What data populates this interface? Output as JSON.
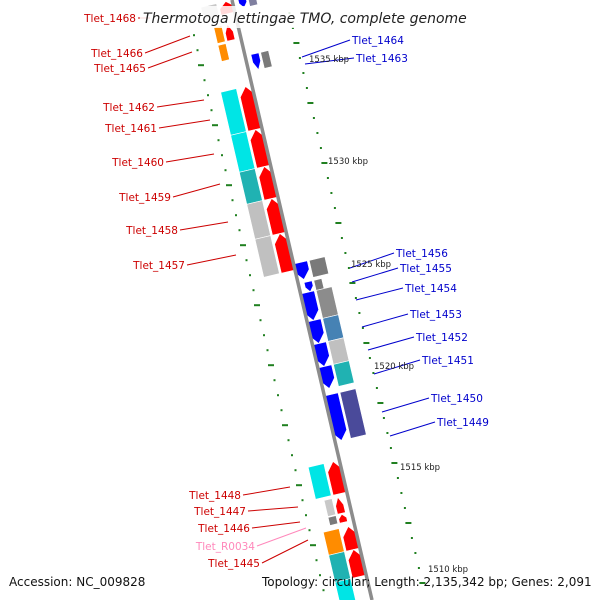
{
  "title": "Thermotoga lettingae TMO, complete genome",
  "accession_line": "Accession: NC_009828",
  "summary_line": "Topology: circular; Length: 2,135,342 bp; Genes: 2,091",
  "colors": {
    "backbone": "#8c8c8c",
    "forward_arrow": "#ff0000",
    "reverse_arrow": "#0000ff",
    "forward_label": "#cc0000",
    "reverse_label": "#0000cc",
    "rna_label": "#ff88bb",
    "tick": "#208020"
  },
  "scale_labels": [
    "1535 kbp",
    "1530 kbp",
    "1525 kbp",
    "1520 kbp",
    "1515 kbp",
    "1510 kbp"
  ],
  "genes_left": [
    {
      "label": "Tlet_1468",
      "strand": "forward"
    },
    {
      "label": "Tlet_1466",
      "strand": "forward"
    },
    {
      "label": "Tlet_1465",
      "strand": "forward"
    },
    {
      "label": "Tlet_1462",
      "strand": "forward"
    },
    {
      "label": "Tlet_1461",
      "strand": "forward"
    },
    {
      "label": "Tlet_1460",
      "strand": "forward"
    },
    {
      "label": "Tlet_1459",
      "strand": "forward"
    },
    {
      "label": "Tlet_1458",
      "strand": "forward"
    },
    {
      "label": "Tlet_1457",
      "strand": "forward"
    },
    {
      "label": "Tlet_1448",
      "strand": "forward"
    },
    {
      "label": "Tlet_1447",
      "strand": "forward"
    },
    {
      "label": "Tlet_1446",
      "strand": "forward"
    },
    {
      "label": "Tlet_R0034",
      "strand": "rna"
    },
    {
      "label": "Tlet_1445",
      "strand": "forward"
    }
  ],
  "genes_right": [
    {
      "label": "Tlet_1464",
      "strand": "reverse"
    },
    {
      "label": "Tlet_1463",
      "strand": "reverse"
    },
    {
      "label": "Tlet_1456",
      "strand": "reverse"
    },
    {
      "label": "Tlet_1455",
      "strand": "reverse"
    },
    {
      "label": "Tlet_1454",
      "strand": "reverse"
    },
    {
      "label": "Tlet_1453",
      "strand": "reverse"
    },
    {
      "label": "Tlet_1452",
      "strand": "reverse"
    },
    {
      "label": "Tlet_1451",
      "strand": "reverse"
    },
    {
      "label": "Tlet_1450",
      "strand": "reverse"
    },
    {
      "label": "Tlet_1449",
      "strand": "reverse"
    }
  ]
}
